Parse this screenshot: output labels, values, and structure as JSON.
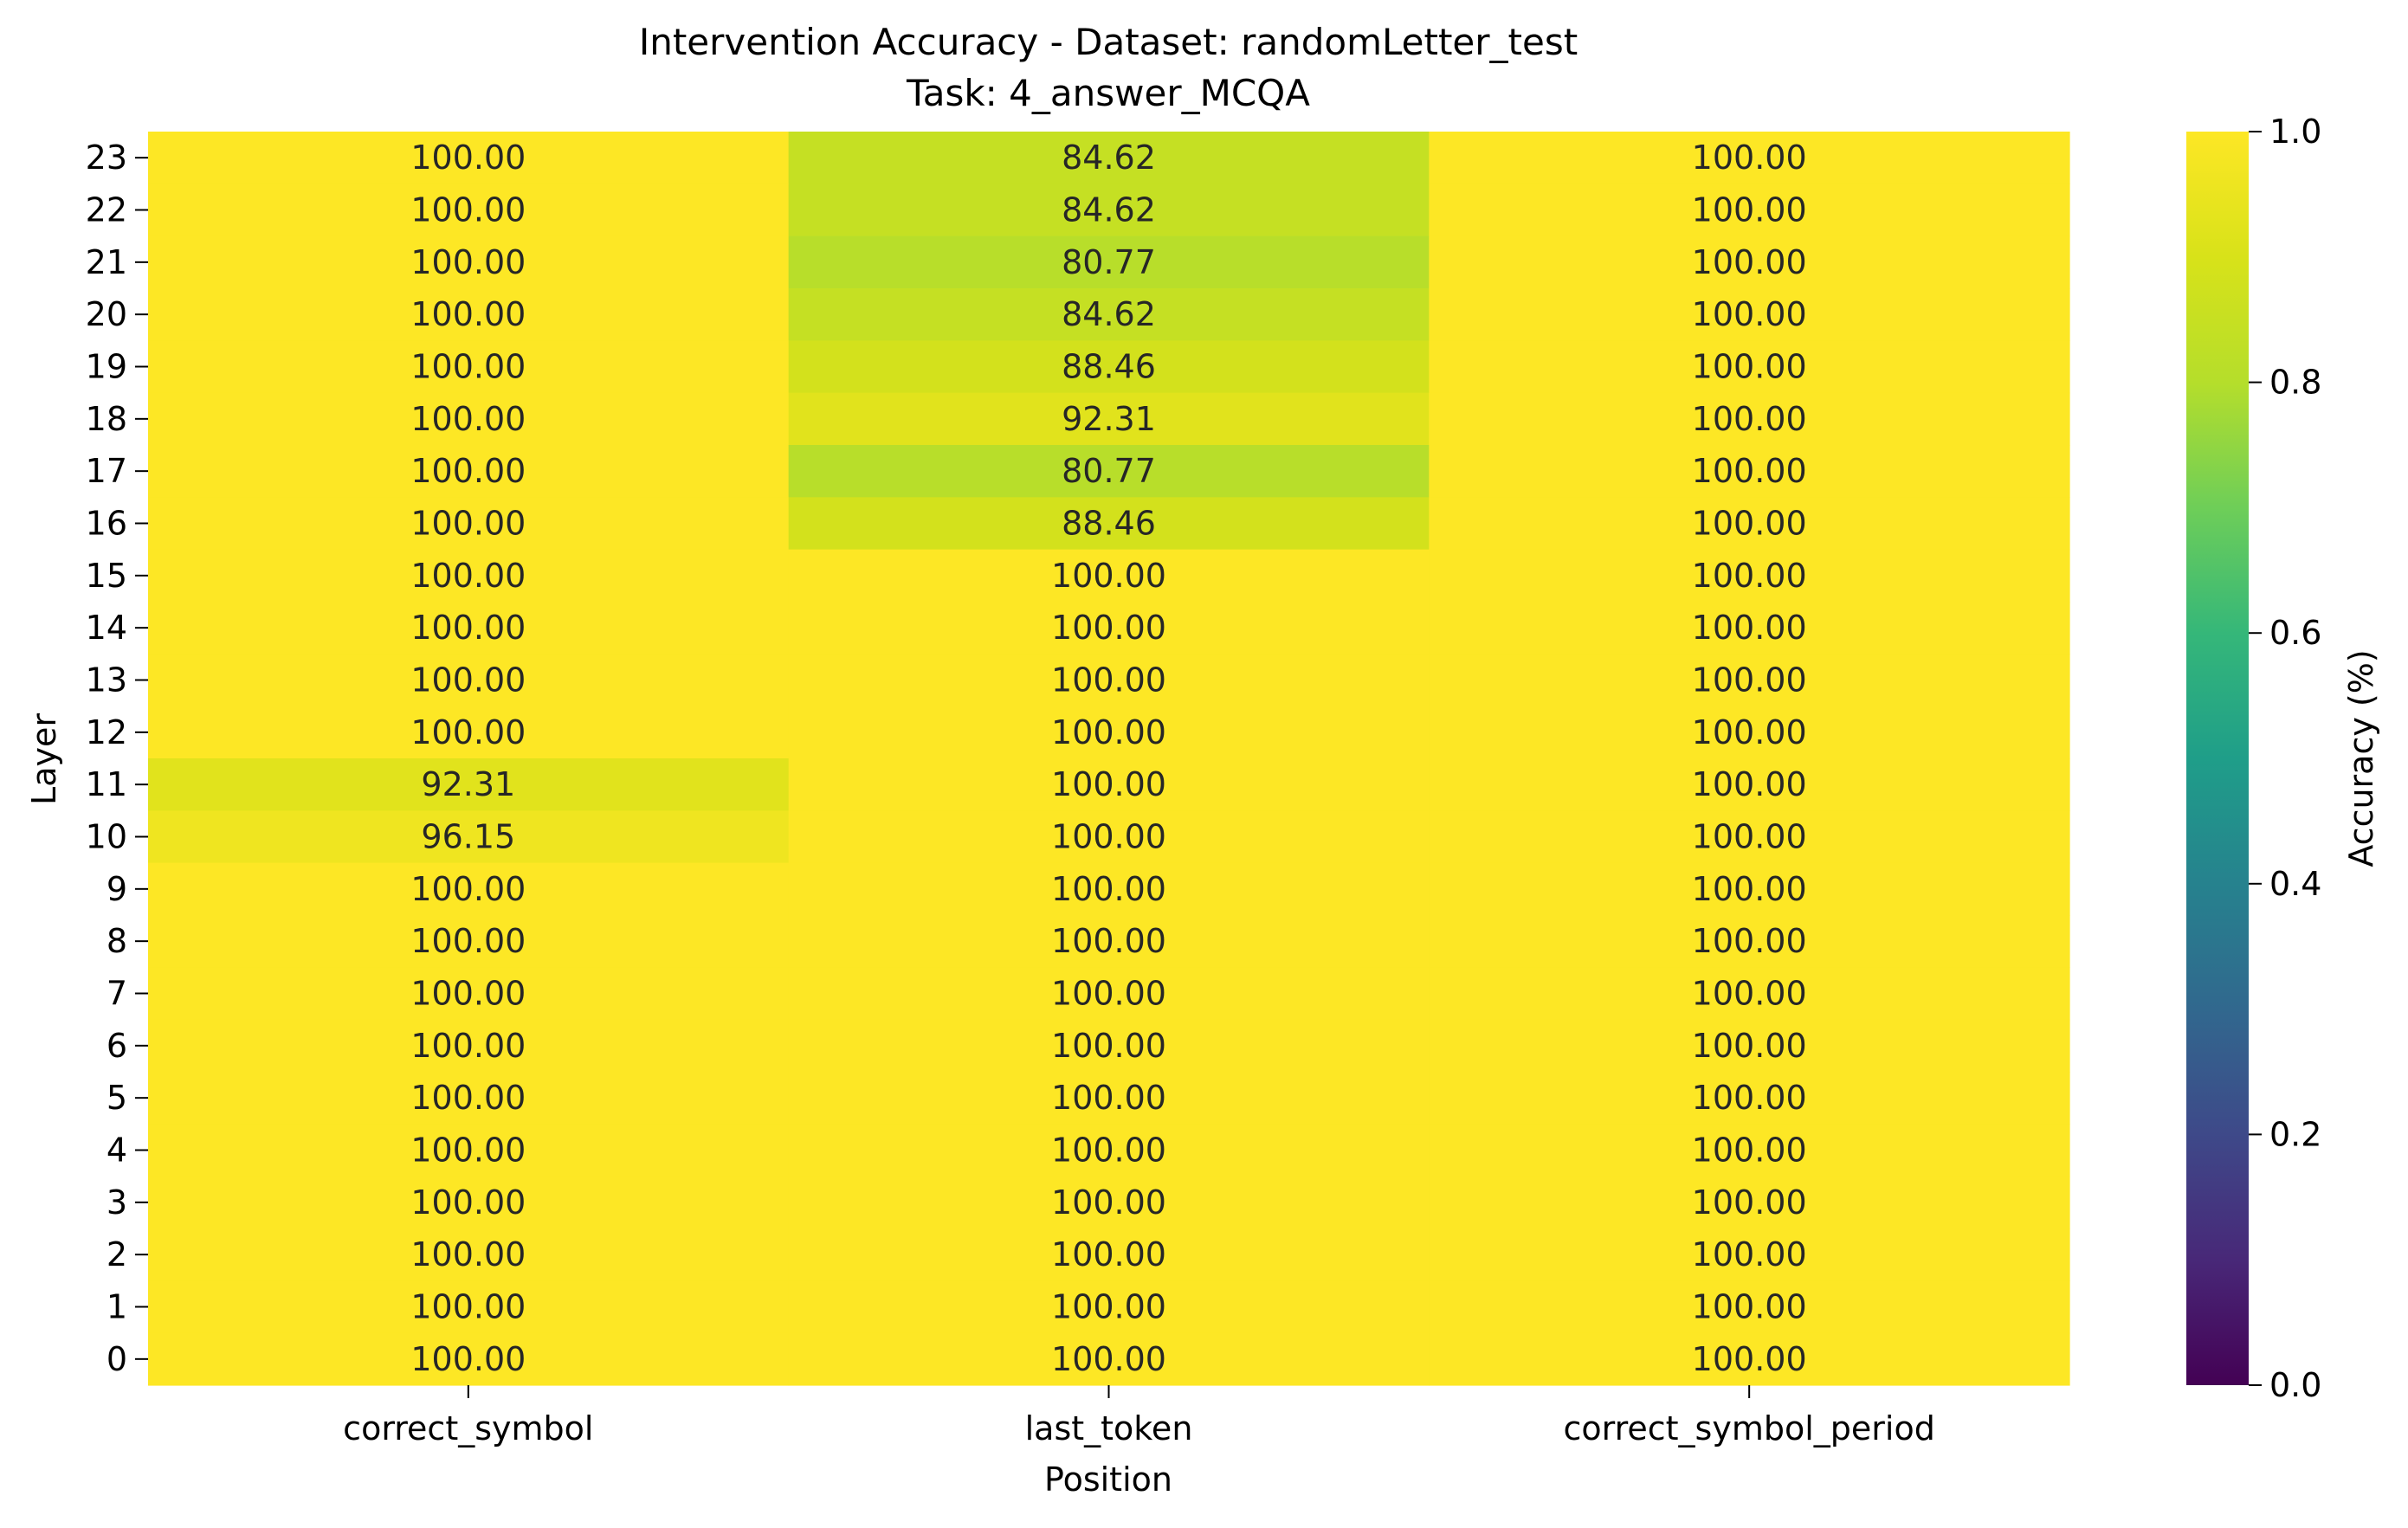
{
  "chart_data": {
    "type": "heatmap",
    "title": "Intervention Accuracy - Dataset: randomLetter_test",
    "subtitle": "Task: 4_answer_MCQA",
    "xlabel": "Position",
    "ylabel": "Layer",
    "x_categories": [
      "correct_symbol",
      "last_token",
      "correct_symbol_period"
    ],
    "y_categories": [
      23,
      22,
      21,
      20,
      19,
      18,
      17,
      16,
      15,
      14,
      13,
      12,
      11,
      10,
      9,
      8,
      7,
      6,
      5,
      4,
      3,
      2,
      1,
      0
    ],
    "values": [
      [
        100.0,
        84.62,
        100.0
      ],
      [
        100.0,
        84.62,
        100.0
      ],
      [
        100.0,
        80.77,
        100.0
      ],
      [
        100.0,
        84.62,
        100.0
      ],
      [
        100.0,
        88.46,
        100.0
      ],
      [
        100.0,
        92.31,
        100.0
      ],
      [
        100.0,
        80.77,
        100.0
      ],
      [
        100.0,
        88.46,
        100.0
      ],
      [
        100.0,
        100.0,
        100.0
      ],
      [
        100.0,
        100.0,
        100.0
      ],
      [
        100.0,
        100.0,
        100.0
      ],
      [
        100.0,
        100.0,
        100.0
      ],
      [
        92.31,
        100.0,
        100.0
      ],
      [
        96.15,
        100.0,
        100.0
      ],
      [
        100.0,
        100.0,
        100.0
      ],
      [
        100.0,
        100.0,
        100.0
      ],
      [
        100.0,
        100.0,
        100.0
      ],
      [
        100.0,
        100.0,
        100.0
      ],
      [
        100.0,
        100.0,
        100.0
      ],
      [
        100.0,
        100.0,
        100.0
      ],
      [
        100.0,
        100.0,
        100.0
      ],
      [
        100.0,
        100.0,
        100.0
      ],
      [
        100.0,
        100.0,
        100.0
      ],
      [
        100.0,
        100.0,
        100.0
      ]
    ],
    "value_format": "2 decimals",
    "colormap": "viridis",
    "colorbar": {
      "label": "Accuracy (%)",
      "range": [
        0.0,
        1.0
      ],
      "ticks": [
        "0.0",
        "0.2",
        "0.4",
        "0.6",
        "0.8",
        "1.0"
      ]
    }
  }
}
